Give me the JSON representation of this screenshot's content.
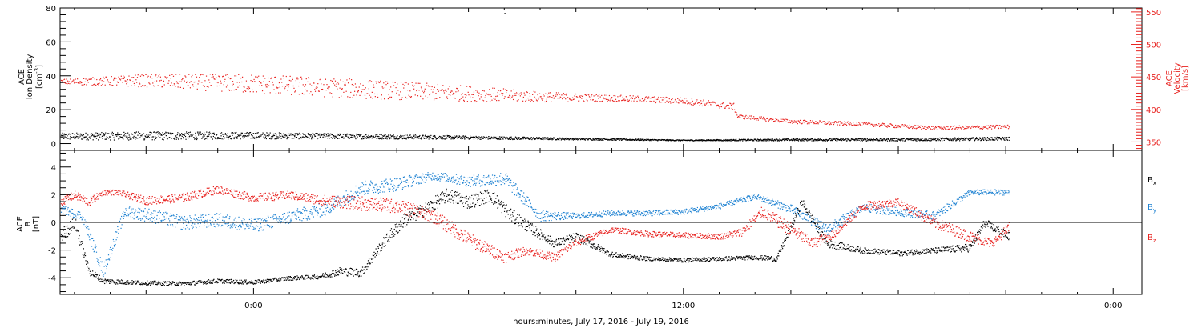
{
  "colors": {
    "black": "#000000",
    "red": "#e8221f",
    "blue": "#1e82d2"
  },
  "xlabel": "hours:minutes, July 17, 2016 - July 19, 2016",
  "x_ticks": [
    {
      "t": 0,
      "label": "0:00"
    },
    {
      "t": 12,
      "label": "12:00"
    },
    {
      "t": 24,
      "label": "0:00"
    }
  ],
  "x_range_hours": [
    -5.4,
    24.8
  ],
  "data_end_hours": 21.1,
  "chart_data": [
    {
      "type": "scatter",
      "panel": "top",
      "ylabel_lines": [
        "ACE",
        "Ion Density",
        "[cm^-3]"
      ],
      "ylabel_units": "cm",
      "ylabel_units_sup": "-3",
      "ylim": [
        -4,
        80
      ],
      "yticks": [
        0,
        20,
        40,
        60,
        80
      ],
      "y2label_lines": [
        "ACE",
        "Velocity",
        "[km/s]"
      ],
      "y2lim": [
        337,
        556
      ],
      "y2ticks": [
        350,
        400,
        450,
        500,
        550
      ],
      "series": [
        {
          "name": "Ion Density",
          "axis": "left",
          "color": "#000000",
          "x": [
            -5.4,
            -3,
            0,
            3,
            6,
            9,
            12,
            15,
            18,
            21.1
          ],
          "y": [
            4.5,
            4.8,
            5.0,
            4.5,
            3.8,
            3.0,
            2.2,
            2.5,
            2.6,
            3.2
          ],
          "scatter": [
            2.0,
            2.5,
            2.0,
            1.5,
            1.0,
            0.6,
            0.3,
            0.6,
            0.8,
            1.0
          ]
        },
        {
          "name": "Velocity",
          "axis": "right",
          "color": "#e8221f",
          "x": [
            -5.4,
            -3,
            0,
            3,
            6,
            8,
            10,
            12,
            13.4,
            13.5,
            15,
            17,
            19,
            21.1
          ],
          "y": [
            443,
            445,
            440,
            432,
            425,
            420,
            418,
            414,
            405,
            390,
            382,
            378,
            372,
            374
          ],
          "scatter": [
            4,
            10,
            15,
            15,
            12,
            8,
            5,
            5,
            5,
            3,
            3,
            3,
            3,
            3
          ]
        }
      ],
      "annotation_point": {
        "x": 7.0,
        "y": 77
      }
    },
    {
      "type": "scatter",
      "panel": "bottom",
      "ylabel_lines": [
        "ACE",
        "B",
        "[nT]"
      ],
      "ylim": [
        -5.2,
        5.2
      ],
      "yticks": [
        -4,
        -2,
        0,
        2,
        4
      ],
      "zero_line": true,
      "series": [
        {
          "name": "Bx",
          "label_base": "B",
          "label_sub": "x",
          "color": "#000000",
          "x": [
            -5.4,
            -5,
            -4.6,
            -4.2,
            -3.5,
            -2,
            -1,
            0,
            1,
            1.8,
            2.4,
            3,
            3.6,
            4.2,
            4.8,
            5.4,
            6,
            6.6,
            7.2,
            7.8,
            8.4,
            9,
            10,
            11,
            12,
            13,
            14,
            14.6,
            15.3,
            16,
            17,
            18,
            19,
            20,
            20.4,
            21.1
          ],
          "y": [
            -1,
            0,
            -3.5,
            -4.2,
            -4.3,
            -4.4,
            -4.2,
            -4.3,
            -4.0,
            -3.9,
            -3.5,
            -3.6,
            -1.5,
            0.2,
            1.0,
            2.0,
            1.5,
            2.0,
            0.5,
            -0.5,
            -1.5,
            -1.0,
            -2.3,
            -2.6,
            -2.7,
            -2.6,
            -2.5,
            -2.6,
            1.5,
            -1.5,
            -2.0,
            -2.2,
            -2.0,
            -1.8,
            0,
            -1.0
          ],
          "scatter": [
            0.5,
            0.5,
            0.3,
            0.2,
            0.15,
            0.15,
            0.15,
            0.15,
            0.15,
            0.15,
            0.3,
            0.3,
            0.4,
            0.5,
            0.5,
            0.5,
            0.5,
            0.5,
            0.5,
            0.4,
            0.3,
            0.3,
            0.2,
            0.15,
            0.15,
            0.15,
            0.15,
            0.2,
            0.3,
            0.3,
            0.2,
            0.2,
            0.2,
            0.3,
            0.3,
            0.3
          ]
        },
        {
          "name": "By",
          "label_base": "B",
          "label_sub": "y",
          "color": "#1e82d2",
          "x": [
            -5.4,
            -4.8,
            -4.2,
            -3.6,
            -3,
            -2,
            -1,
            0,
            1,
            2,
            3,
            4,
            5,
            6,
            7,
            8,
            9,
            10,
            11,
            12,
            13,
            14,
            15,
            16,
            17,
            18,
            19,
            20,
            21.1
          ],
          "y": [
            1.0,
            0.5,
            -3.5,
            0.8,
            0.6,
            0.0,
            0.2,
            -0.2,
            0.4,
            1.0,
            2.5,
            2.8,
            3.4,
            3.0,
            3.2,
            0.5,
            0.5,
            0.7,
            0.7,
            0.8,
            1.2,
            1.9,
            1.0,
            -0.5,
            1.1,
            0.8,
            0.5,
            2.2,
            2.2
          ],
          "scatter": [
            0.3,
            0.3,
            0.5,
            0.4,
            0.5,
            0.5,
            0.5,
            0.5,
            0.5,
            0.5,
            0.5,
            0.5,
            0.3,
            0.4,
            0.5,
            0.4,
            0.2,
            0.2,
            0.2,
            0.2,
            0.2,
            0.2,
            0.3,
            0.4,
            0.3,
            0.3,
            0.3,
            0.2,
            0.2
          ]
        },
        {
          "name": "Bz",
          "label_base": "B",
          "label_sub": "z",
          "color": "#e8221f",
          "x": [
            -5.4,
            -5.0,
            -4.6,
            -4.2,
            -3.8,
            -3.0,
            -2.0,
            -1.0,
            0.0,
            1.0,
            2.0,
            3.0,
            4.0,
            5.0,
            6.0,
            7.0,
            7.6,
            8.4,
            9.0,
            10.0,
            11.0,
            12.0,
            13.0,
            13.6,
            14.2,
            15.0,
            15.6,
            16.2,
            17.0,
            18.0,
            19.0,
            20.0,
            20.6,
            21.1
          ],
          "y": [
            1.5,
            2.0,
            1.5,
            2.2,
            2.2,
            1.6,
            1.8,
            2.4,
            1.8,
            2.0,
            1.6,
            1.4,
            1.2,
            0.5,
            -1.2,
            -2.5,
            -2.0,
            -2.5,
            -1.4,
            -0.5,
            -0.8,
            -0.9,
            -1.0,
            -0.7,
            0.8,
            -0.5,
            -1.5,
            -0.8,
            1.2,
            1.5,
            0.0,
            -1.0,
            -1.5,
            -0.3
          ],
          "scatter": [
            0.3,
            0.3,
            0.3,
            0.2,
            0.2,
            0.3,
            0.3,
            0.3,
            0.3,
            0.3,
            0.4,
            0.5,
            0.5,
            0.5,
            0.5,
            0.4,
            0.3,
            0.3,
            0.3,
            0.2,
            0.2,
            0.2,
            0.2,
            0.3,
            0.4,
            0.5,
            0.4,
            0.3,
            0.3,
            0.3,
            0.4,
            0.4,
            0.3,
            0.4
          ]
        }
      ]
    }
  ]
}
